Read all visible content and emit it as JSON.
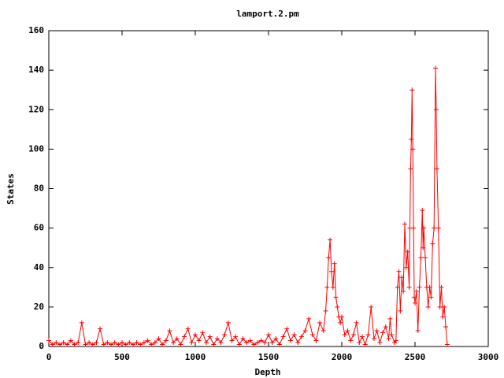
{
  "chart_data": {
    "type": "line",
    "title": "lamport.2.pm",
    "x_label": "Depth",
    "y_label": "States",
    "color": "#ff0000",
    "marker": "+",
    "x": [
      0,
      25,
      50,
      75,
      100,
      125,
      150,
      175,
      200,
      225,
      250,
      275,
      300,
      325,
      350,
      375,
      400,
      425,
      450,
      475,
      500,
      525,
      550,
      575,
      600,
      625,
      650,
      675,
      700,
      725,
      750,
      775,
      800,
      825,
      850,
      875,
      900,
      925,
      950,
      975,
      1000,
      1025,
      1050,
      1075,
      1100,
      1125,
      1150,
      1175,
      1200,
      1225,
      1250,
      1275,
      1300,
      1325,
      1350,
      1375,
      1400,
      1425,
      1450,
      1475,
      1500,
      1525,
      1550,
      1575,
      1600,
      1625,
      1650,
      1675,
      1700,
      1725,
      1750,
      1775,
      1800,
      1825,
      1850,
      1875,
      1890,
      1900,
      1910,
      1920,
      1930,
      1940,
      1950,
      1960,
      1970,
      1980,
      1990,
      2000,
      2020,
      2040,
      2060,
      2080,
      2100,
      2120,
      2140,
      2160,
      2180,
      2200,
      2220,
      2240,
      2260,
      2280,
      2300,
      2320,
      2330,
      2340,
      2360,
      2370,
      2380,
      2390,
      2400,
      2410,
      2420,
      2430,
      2440,
      2450,
      2460,
      2465,
      2470,
      2475,
      2480,
      2485,
      2490,
      2495,
      2500,
      2510,
      2520,
      2530,
      2540,
      2550,
      2555,
      2560,
      2570,
      2580,
      2590,
      2600,
      2610,
      2620,
      2630,
      2640,
      2645,
      2650,
      2660,
      2670,
      2680,
      2690,
      2700,
      2710,
      2720
    ],
    "values": [
      3,
      1,
      2,
      1,
      2,
      1,
      3,
      1,
      2,
      12,
      1,
      2,
      1,
      2,
      9,
      1,
      2,
      1,
      2,
      1,
      2,
      1,
      2,
      1,
      2,
      1,
      2,
      3,
      1,
      2,
      4,
      1,
      3,
      8,
      2,
      4,
      1,
      5,
      9,
      2,
      6,
      3,
      7,
      2,
      5,
      1,
      4,
      2,
      6,
      12,
      3,
      5,
      1,
      4,
      2,
      3,
      1,
      2,
      3,
      2,
      6,
      2,
      4,
      1,
      5,
      9,
      3,
      6,
      2,
      5,
      8,
      14,
      6,
      3,
      12,
      8,
      18,
      30,
      45,
      54,
      38,
      30,
      42,
      25,
      20,
      15,
      12,
      15,
      6,
      8,
      3,
      6,
      12,
      2,
      5,
      1,
      6,
      20,
      4,
      8,
      2,
      7,
      10,
      4,
      14,
      6,
      2,
      3,
      30,
      38,
      18,
      35,
      28,
      62,
      40,
      48,
      30,
      60,
      90,
      105,
      130,
      100,
      60,
      25,
      22,
      28,
      8,
      30,
      45,
      69,
      50,
      60,
      45,
      30,
      20,
      30,
      25,
      52,
      60,
      141,
      120,
      90,
      60,
      20,
      30,
      15,
      20,
      10,
      1
    ],
    "xlim": [
      0,
      3000
    ],
    "xticks": [
      0,
      500,
      1000,
      1500,
      2000,
      2500,
      3000
    ],
    "ylim": [
      0,
      160
    ],
    "yticks": [
      0,
      20,
      40,
      60,
      80,
      100,
      120,
      140,
      160
    ],
    "grid": false
  }
}
